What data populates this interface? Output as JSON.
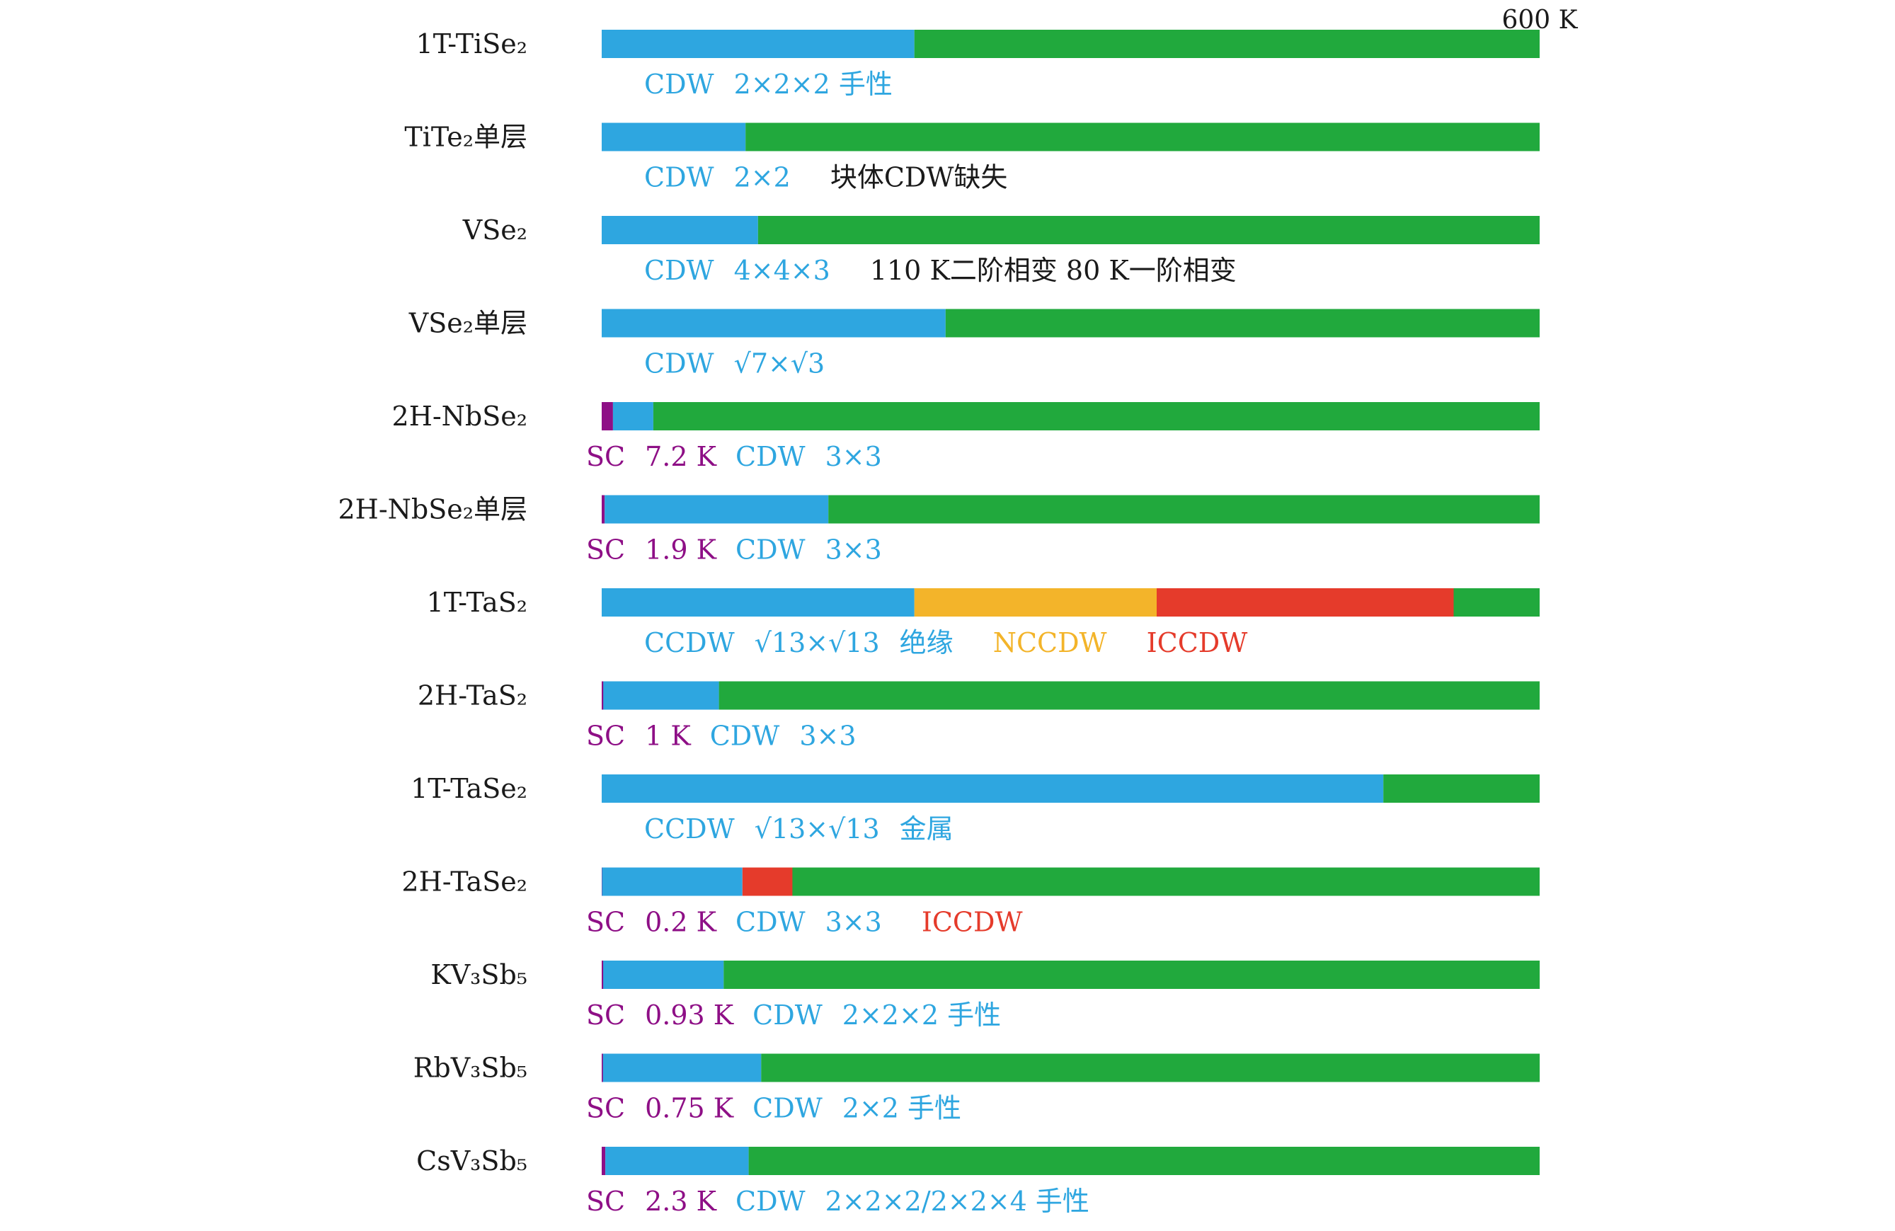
{
  "chart_data": {
    "type": "bar",
    "orientation": "horizontal-stacked",
    "xlim": [
      0,
      600
    ],
    "x_end_label": "600 K",
    "colors": {
      "sc": "#8e0f86",
      "cdw": "#2ea6e0",
      "nccdw": "#f3b42a",
      "iccdw": "#e53b2b",
      "normal": "#21a93d",
      "black": "#1a1a1a"
    },
    "rows": [
      {
        "name": "1T-TiSe₂",
        "segments": [
          {
            "phase": "CDW",
            "from": 0,
            "to": 200
          },
          {
            "phase": "normal",
            "from": 200,
            "to": 600
          }
        ],
        "annotation": [
          {
            "text": "CDW",
            "color": "cdw"
          },
          {
            "text": "2×2×2  手性",
            "color": "cdw"
          }
        ]
      },
      {
        "name": "TiTe₂单层",
        "segments": [
          {
            "phase": "CDW",
            "from": 0,
            "to": 92
          },
          {
            "phase": "normal",
            "from": 92,
            "to": 600
          }
        ],
        "annotation": [
          {
            "text": "CDW",
            "color": "cdw"
          },
          {
            "text": "2×2",
            "color": "cdw"
          },
          {
            "text": "块体CDW缺失",
            "color": "black"
          }
        ]
      },
      {
        "name": "VSe₂",
        "segments": [
          {
            "phase": "CDW",
            "from": 0,
            "to": 100
          },
          {
            "phase": "normal",
            "from": 100,
            "to": 600
          }
        ],
        "annotation": [
          {
            "text": "CDW",
            "color": "cdw"
          },
          {
            "text": "4×4×3",
            "color": "cdw"
          },
          {
            "text": "110 K二阶相变  80 K一阶相变",
            "color": "black"
          }
        ]
      },
      {
        "name": "VSe₂单层",
        "segments": [
          {
            "phase": "CDW",
            "from": 0,
            "to": 220
          },
          {
            "phase": "normal",
            "from": 220,
            "to": 600
          }
        ],
        "annotation": [
          {
            "text": "CDW",
            "color": "cdw"
          },
          {
            "text": "√7×√3",
            "color": "cdw"
          }
        ]
      },
      {
        "name": "2H-NbSe₂",
        "segments": [
          {
            "phase": "SC",
            "from": 0,
            "to": 7.2
          },
          {
            "phase": "CDW",
            "from": 7.2,
            "to": 33
          },
          {
            "phase": "normal",
            "from": 33,
            "to": 600
          }
        ],
        "annotation": [
          {
            "text": "SC",
            "color": "sc"
          },
          {
            "text": "7.2 K",
            "color": "sc"
          },
          {
            "text": "CDW",
            "color": "cdw"
          },
          {
            "text": "3×3",
            "color": "cdw"
          }
        ]
      },
      {
        "name": "2H-NbSe₂单层",
        "segments": [
          {
            "phase": "SC",
            "from": 0,
            "to": 1.9
          },
          {
            "phase": "CDW",
            "from": 1.9,
            "to": 145
          },
          {
            "phase": "normal",
            "from": 145,
            "to": 600
          }
        ],
        "annotation": [
          {
            "text": "SC",
            "color": "sc"
          },
          {
            "text": "1.9 K",
            "color": "sc"
          },
          {
            "text": "CDW",
            "color": "cdw"
          },
          {
            "text": "3×3",
            "color": "cdw"
          }
        ]
      },
      {
        "name": "1T-TaS₂",
        "segments": [
          {
            "phase": "CCDW",
            "from": 0,
            "to": 200
          },
          {
            "phase": "NCCDW",
            "from": 200,
            "to": 355
          },
          {
            "phase": "ICCDW",
            "from": 355,
            "to": 545
          },
          {
            "phase": "normal",
            "from": 545,
            "to": 600
          }
        ],
        "annotation": [
          {
            "text": "CCDW",
            "color": "cdw"
          },
          {
            "text": "√13×√13",
            "color": "cdw"
          },
          {
            "text": "绝缘",
            "color": "cdw"
          },
          {
            "text": "NCCDW",
            "color": "nccdw"
          },
          {
            "text": "ICCDW",
            "color": "iccdw"
          }
        ]
      },
      {
        "name": "2H-TaS₂",
        "segments": [
          {
            "phase": "SC",
            "from": 0,
            "to": 1
          },
          {
            "phase": "CDW",
            "from": 1,
            "to": 75
          },
          {
            "phase": "normal",
            "from": 75,
            "to": 600
          }
        ],
        "annotation": [
          {
            "text": "SC",
            "color": "sc"
          },
          {
            "text": "1 K",
            "color": "sc"
          },
          {
            "text": "CDW",
            "color": "cdw"
          },
          {
            "text": "3×3",
            "color": "cdw"
          }
        ]
      },
      {
        "name": "1T-TaSe₂",
        "segments": [
          {
            "phase": "CCDW",
            "from": 0,
            "to": 500
          },
          {
            "phase": "normal",
            "from": 500,
            "to": 600
          }
        ],
        "annotation": [
          {
            "text": "CCDW",
            "color": "cdw"
          },
          {
            "text": "√13×√13",
            "color": "cdw"
          },
          {
            "text": "金属",
            "color": "cdw"
          }
        ]
      },
      {
        "name": "2H-TaSe₂",
        "segments": [
          {
            "phase": "SC",
            "from": 0,
            "to": 0.2
          },
          {
            "phase": "CDW",
            "from": 0.2,
            "to": 90
          },
          {
            "phase": "ICCDW",
            "from": 90,
            "to": 122
          },
          {
            "phase": "normal",
            "from": 122,
            "to": 600
          }
        ],
        "annotation": [
          {
            "text": "SC",
            "color": "sc"
          },
          {
            "text": "0.2 K",
            "color": "sc"
          },
          {
            "text": "CDW",
            "color": "cdw"
          },
          {
            "text": "3×3",
            "color": "cdw"
          },
          {
            "text": "ICCDW",
            "color": "iccdw"
          }
        ]
      },
      {
        "name": "KV₃Sb₅",
        "segments": [
          {
            "phase": "SC",
            "from": 0,
            "to": 0.93
          },
          {
            "phase": "CDW",
            "from": 0.93,
            "to": 78
          },
          {
            "phase": "normal",
            "from": 78,
            "to": 600
          }
        ],
        "annotation": [
          {
            "text": "SC",
            "color": "sc"
          },
          {
            "text": "0.93 K",
            "color": "sc"
          },
          {
            "text": "CDW",
            "color": "cdw"
          },
          {
            "text": "2×2×2  手性",
            "color": "cdw"
          }
        ]
      },
      {
        "name": "RbV₃Sb₅",
        "segments": [
          {
            "phase": "SC",
            "from": 0,
            "to": 0.75
          },
          {
            "phase": "CDW",
            "from": 0.75,
            "to": 102
          },
          {
            "phase": "normal",
            "from": 102,
            "to": 600
          }
        ],
        "annotation": [
          {
            "text": "SC",
            "color": "sc"
          },
          {
            "text": "0.75 K",
            "color": "sc"
          },
          {
            "text": "CDW",
            "color": "cdw"
          },
          {
            "text": "2×2  手性",
            "color": "cdw"
          }
        ]
      },
      {
        "name": "CsV₃Sb₅",
        "segments": [
          {
            "phase": "SC",
            "from": 0,
            "to": 2.3
          },
          {
            "phase": "CDW",
            "from": 2.3,
            "to": 94
          },
          {
            "phase": "normal",
            "from": 94,
            "to": 600
          }
        ],
        "annotation": [
          {
            "text": "SC",
            "color": "sc"
          },
          {
            "text": "2.3 K",
            "color": "sc"
          },
          {
            "text": "CDW",
            "color": "cdw"
          },
          {
            "text": "2×2×2/2×2×4  手性",
            "color": "cdw"
          }
        ]
      }
    ]
  }
}
